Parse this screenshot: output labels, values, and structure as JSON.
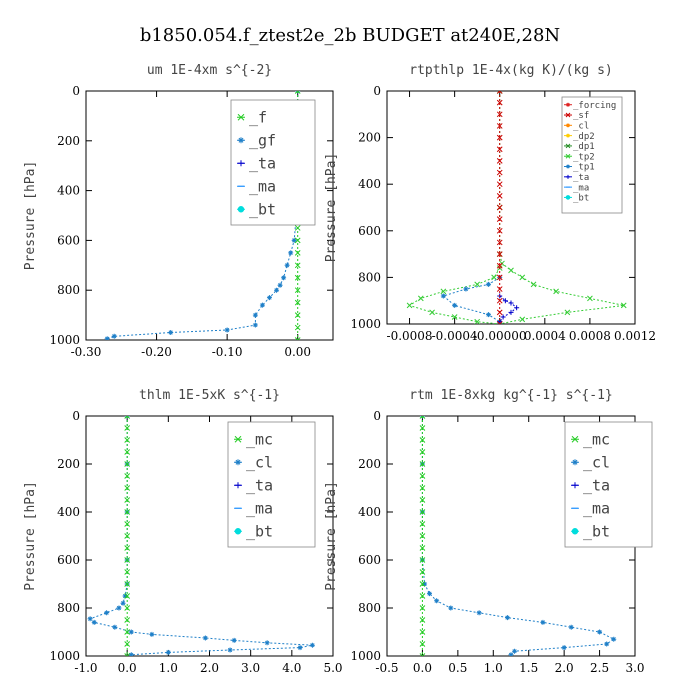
{
  "title": "b1850.054.f_ztest2e_2b  BUDGET at240E,28N",
  "chart_data": [
    {
      "type": "line",
      "title": "um  1E-4xm s^{-2}",
      "ylabel": "Pressure [hPa]",
      "xlim": [
        -0.3,
        0.05
      ],
      "ylim": [
        1000,
        0
      ],
      "xticks": [
        "-0.30",
        "-0.20",
        "-0.10",
        "0.00"
      ],
      "xtick_values": [
        -0.3,
        -0.2,
        -0.1,
        0.0
      ],
      "yticks": [
        "0",
        "200",
        "400",
        "600",
        "800",
        "1000"
      ],
      "ytick_values": [
        0,
        200,
        400,
        600,
        800,
        1000
      ],
      "legend_position": "top-right",
      "series": [
        {
          "name": "_f",
          "color": "#22cc22",
          "marker": "x",
          "x": [
            0.0,
            0.0,
            0.0,
            0.0,
            0.0,
            0.0,
            0.0,
            0.0,
            0.0,
            0.0,
            0.0,
            0.0,
            0.0,
            0.0,
            0.0,
            0.0,
            0.0,
            0.0,
            0.0,
            0.0,
            0.0
          ],
          "y": [
            0,
            50,
            100,
            150,
            200,
            250,
            300,
            350,
            400,
            450,
            500,
            550,
            600,
            650,
            700,
            750,
            800,
            850,
            900,
            950,
            1000
          ]
        },
        {
          "name": "_gf",
          "color": "#1e7fc8",
          "marker": "*",
          "x": [
            0.0,
            0.0,
            0.0,
            0.0,
            -0.01,
            0.0,
            0.0,
            0.0,
            0.0,
            0.0,
            -0.002,
            -0.005,
            -0.01,
            -0.015,
            -0.02,
            -0.025,
            -0.03,
            -0.04,
            -0.05,
            -0.06,
            -0.06,
            -0.1,
            -0.18,
            -0.26,
            -0.27
          ],
          "y": [
            0,
            50,
            100,
            150,
            200,
            250,
            300,
            350,
            400,
            450,
            500,
            600,
            650,
            700,
            750,
            780,
            800,
            830,
            860,
            900,
            940,
            960,
            970,
            985,
            995
          ]
        },
        {
          "name": "_ta",
          "color": "#0000cc",
          "marker": "+",
          "x": [],
          "y": []
        },
        {
          "name": "_ma",
          "color": "#1e90ff",
          "marker": "-",
          "x": [],
          "y": []
        },
        {
          "name": "_bt",
          "color": "#00dddd",
          "marker": "o",
          "x": [],
          "y": []
        }
      ]
    },
    {
      "type": "line",
      "title": "rtpthlp  1E-4x(kg K)/(kg s)",
      "ylabel": "Pressure [hPa]",
      "xlim": [
        -0.001,
        0.0012
      ],
      "ylim": [
        1000,
        0
      ],
      "xticks": [
        "-0.0008",
        "-0.0004",
        "-0.00000",
        "0.0004",
        "0.0008",
        "0.0012"
      ],
      "xtick_values": [
        -0.0008,
        -0.0004,
        0.0,
        0.0004,
        0.0008,
        0.0012
      ],
      "yticks": [
        "0",
        "200",
        "400",
        "600",
        "800",
        "1000"
      ],
      "ytick_values": [
        0,
        200,
        400,
        600,
        800,
        1000
      ],
      "legend_position": "top-right",
      "series": [
        {
          "name": "_forcing",
          "color": "#dd2222",
          "marker": "*",
          "x": [],
          "y": []
        },
        {
          "name": "_sf",
          "color": "#cc0000",
          "marker": "x",
          "x": [
            0,
            0,
            0,
            0,
            0,
            0,
            0,
            0,
            0,
            0,
            0,
            0,
            0,
            0,
            0,
            0,
            0,
            0,
            0,
            0,
            0
          ],
          "y": [
            0,
            50,
            100,
            150,
            200,
            250,
            300,
            350,
            400,
            450,
            500,
            550,
            600,
            650,
            700,
            750,
            800,
            850,
            900,
            950,
            1000
          ]
        },
        {
          "name": "_cl",
          "color": "#ff8800",
          "marker": "*",
          "x": [],
          "y": []
        },
        {
          "name": "_dp2",
          "color": "#ffcc00",
          "marker": "*",
          "x": [],
          "y": []
        },
        {
          "name": "_dp1",
          "color": "#228b22",
          "marker": "x",
          "x": [],
          "y": []
        },
        {
          "name": "_tp2",
          "color": "#33cc33",
          "marker": "x",
          "x": [
            0,
            0,
            0,
            2e-05,
            0.0001,
            0.0002,
            0.0003,
            0.0005,
            0.0008,
            0.0011,
            0.0006,
            0.0002,
            0,
            -0.0002,
            -0.0004,
            -0.0006,
            -0.0008,
            -0.0007,
            -0.0005,
            -0.0002,
            -5e-05,
            0
          ],
          "y": [
            0,
            500,
            700,
            740,
            770,
            800,
            830,
            860,
            890,
            920,
            950,
            980,
            1000,
            990,
            970,
            950,
            920,
            890,
            860,
            830,
            800,
            760
          ]
        },
        {
          "name": "_tp1",
          "color": "#1e7fc8",
          "marker": "*",
          "x": [
            0,
            -0.0001,
            -0.0003,
            -0.0005,
            -0.0004,
            -0.0001,
            0
          ],
          "y": [
            800,
            830,
            850,
            880,
            920,
            960,
            990
          ]
        },
        {
          "name": "_ta",
          "color": "#0000cc",
          "marker": "+",
          "x": [
            0,
            5e-05,
            0.0001,
            0.00015,
            0.0001,
            3e-05,
            0
          ],
          "y": [
            880,
            900,
            910,
            930,
            950,
            970,
            990
          ]
        },
        {
          "name": "_ma",
          "color": "#1e90ff",
          "marker": "-",
          "x": [],
          "y": []
        },
        {
          "name": "_bt",
          "color": "#00dddd",
          "marker": "o",
          "x": [],
          "y": []
        }
      ]
    },
    {
      "type": "line",
      "title": "thlm  1E-5xK s^{-1}",
      "ylabel": "Pressure [hPa]",
      "xlim": [
        -1.0,
        5.0
      ],
      "ylim": [
        1000,
        0
      ],
      "xticks": [
        "-1.0",
        "0.0",
        "1.0",
        "2.0",
        "3.0",
        "4.0",
        "5.0"
      ],
      "xtick_values": [
        -1,
        0,
        1,
        2,
        3,
        4,
        5
      ],
      "yticks": [
        "0",
        "200",
        "400",
        "600",
        "800",
        "1000"
      ],
      "ytick_values": [
        0,
        200,
        400,
        600,
        800,
        1000
      ],
      "legend_position": "top-right",
      "series": [
        {
          "name": "_mc",
          "color": "#22cc22",
          "marker": "x",
          "x": [
            0,
            0,
            0,
            0,
            0,
            0,
            0,
            0,
            0,
            0,
            0,
            0,
            0,
            0,
            0,
            0,
            0,
            0,
            0,
            0,
            0
          ],
          "y": [
            0,
            50,
            100,
            150,
            200,
            250,
            300,
            350,
            400,
            450,
            500,
            550,
            600,
            650,
            700,
            750,
            800,
            850,
            900,
            950,
            1000
          ]
        },
        {
          "name": "_cl",
          "color": "#1e7fc8",
          "marker": "*",
          "x": [
            0,
            0,
            0,
            0,
            0,
            -0.05,
            -0.1,
            -0.2,
            -0.5,
            -0.9,
            -0.8,
            -0.3,
            0.1,
            0.6,
            1.9,
            2.6,
            3.4,
            4.5,
            4.2,
            2.5,
            1.0,
            0.1
          ],
          "y": [
            0,
            200,
            400,
            600,
            700,
            750,
            780,
            800,
            820,
            845,
            860,
            880,
            900,
            910,
            925,
            935,
            945,
            955,
            965,
            975,
            985,
            995
          ]
        },
        {
          "name": "_ta",
          "color": "#0000cc",
          "marker": "+",
          "x": [],
          "y": []
        },
        {
          "name": "_ma",
          "color": "#1e90ff",
          "marker": "-",
          "x": [],
          "y": []
        },
        {
          "name": "_bt",
          "color": "#00dddd",
          "marker": "o",
          "x": [],
          "y": []
        }
      ]
    },
    {
      "type": "line",
      "title": "rtm  1E-8xkg kg^{-1} s^{-1}",
      "ylabel": "Pressure [hPa]",
      "xlim": [
        -0.5,
        3.0
      ],
      "ylim": [
        1000,
        0
      ],
      "xticks": [
        "-0.5",
        "0.0",
        "0.5",
        "1.0",
        "1.5",
        "2.0",
        "2.5",
        "3.0"
      ],
      "xtick_values": [
        -0.5,
        0,
        0.5,
        1.0,
        1.5,
        2.0,
        2.5,
        3.0
      ],
      "yticks": [
        "0",
        "200",
        "400",
        "600",
        "800",
        "1000"
      ],
      "ytick_values": [
        0,
        200,
        400,
        600,
        800,
        1000
      ],
      "legend_position": "top-right",
      "series": [
        {
          "name": "_mc",
          "color": "#22cc22",
          "marker": "x",
          "x": [
            0,
            0,
            0,
            0,
            0,
            0,
            0,
            0,
            0,
            0,
            0,
            0,
            0,
            0,
            0,
            0,
            0,
            0,
            0,
            0,
            0
          ],
          "y": [
            0,
            50,
            100,
            150,
            200,
            250,
            300,
            350,
            400,
            450,
            500,
            550,
            600,
            650,
            700,
            750,
            800,
            850,
            900,
            950,
            1000
          ]
        },
        {
          "name": "_cl",
          "color": "#1e7fc8",
          "marker": "*",
          "x": [
            0,
            0,
            0,
            0,
            0.03,
            0.1,
            0.2,
            0.4,
            0.8,
            1.2,
            1.7,
            2.1,
            2.5,
            2.7,
            2.6,
            2.0,
            1.3,
            1.25
          ],
          "y": [
            0,
            200,
            400,
            600,
            700,
            740,
            770,
            800,
            820,
            840,
            860,
            880,
            900,
            930,
            950,
            965,
            980,
            995
          ]
        },
        {
          "name": "_ta",
          "color": "#0000cc",
          "marker": "+",
          "x": [],
          "y": []
        },
        {
          "name": "_ma",
          "color": "#1e90ff",
          "marker": "-",
          "x": [],
          "y": []
        },
        {
          "name": "_bt",
          "color": "#00dddd",
          "marker": "o",
          "x": [],
          "y": []
        }
      ]
    }
  ]
}
